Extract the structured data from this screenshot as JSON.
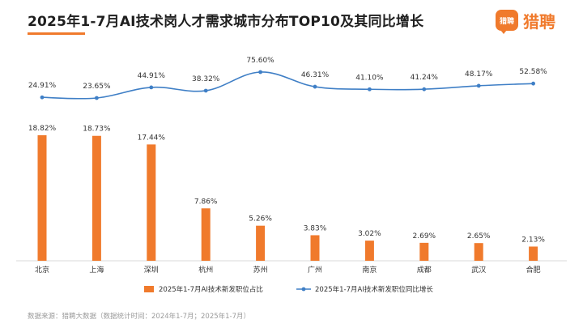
{
  "header": {
    "title": "2025年1-7月AI技术岗人才需求城市分布TOP10及其同比增长",
    "logo_mark": "猎聘",
    "logo_text": "猎聘"
  },
  "footer": {
    "source": "数据来源：猎聘大数据（数据统计时间：2024年1-7月；2025年1-7月）"
  },
  "colors": {
    "bar": "#f07a2c",
    "line": "#3f7fc6",
    "text": "#333333",
    "title_accent": "#f07a2c"
  },
  "chart_data": {
    "type": "bar",
    "categories": [
      "北京",
      "上海",
      "深圳",
      "杭州",
      "苏州",
      "广州",
      "南京",
      "成都",
      "武汉",
      "合肥"
    ],
    "series": [
      {
        "name": "2025年1-7月AI技术新发职位占比",
        "type": "bar",
        "values": [
          18.82,
          18.73,
          17.44,
          7.86,
          5.26,
          3.83,
          3.02,
          2.69,
          2.65,
          2.13
        ],
        "labels": [
          "18.82%",
          "18.73%",
          "17.44%",
          "7.86%",
          "5.26%",
          "3.83%",
          "3.02%",
          "2.69%",
          "2.65%",
          "2.13%"
        ]
      },
      {
        "name": "2025年1-7月AI技术新发职位同比增长",
        "type": "line",
        "values": [
          24.91,
          23.65,
          44.91,
          38.32,
          75.6,
          46.31,
          41.1,
          41.24,
          48.17,
          52.58
        ],
        "labels": [
          "24.91%",
          "23.65%",
          "44.91%",
          "38.32%",
          "75.60%",
          "46.31%",
          "41.10%",
          "41.24%",
          "48.17%",
          "52.58%"
        ]
      }
    ],
    "legend_position": "bottom",
    "grid": false
  }
}
